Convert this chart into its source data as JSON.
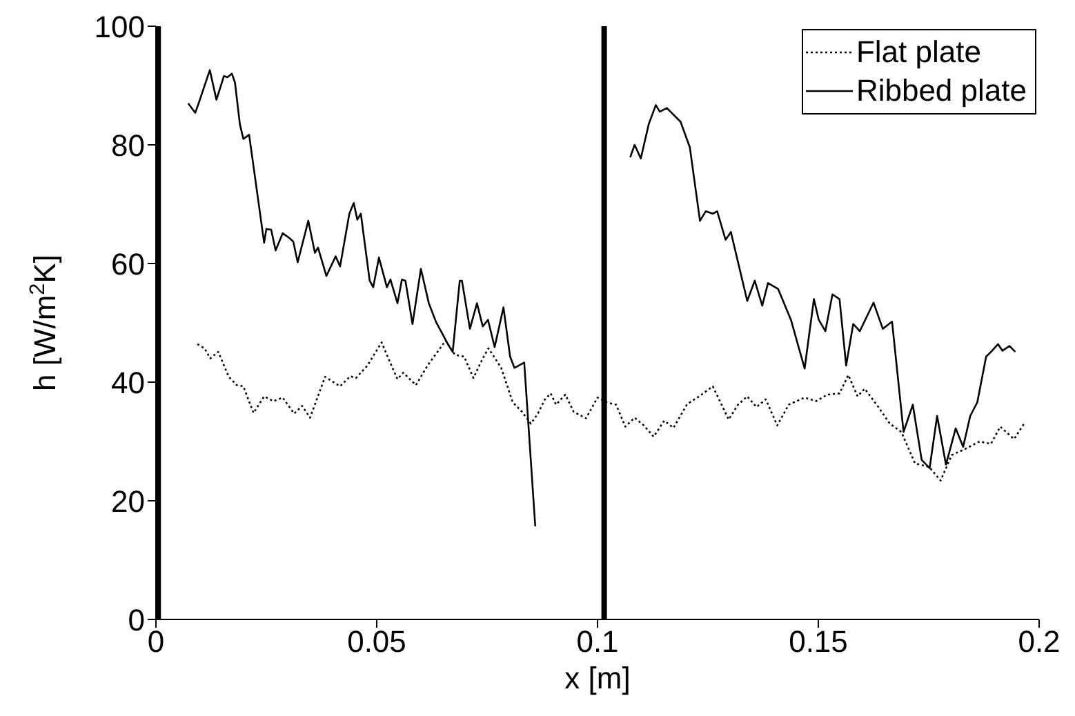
{
  "chart_data": {
    "type": "line",
    "xlabel": "x [m]",
    "ylabel": "h [W/m$^{2}$K]",
    "xlim": [
      0,
      0.2
    ],
    "ylim": [
      0,
      100
    ],
    "xticks": [
      0,
      0.05,
      0.1,
      0.15,
      0.2
    ],
    "yticks": [
      0,
      20,
      40,
      60,
      80,
      100
    ],
    "grid": false,
    "legend": "top right",
    "marker": "none",
    "ref_lines": [
      {
        "axis": "x",
        "value": 0.0005,
        "color": "#000000"
      },
      {
        "axis": "x",
        "value": 0.1015,
        "color": "#000000"
      }
    ],
    "series": [
      {
        "name": "Flat plate",
        "color": "#000000",
        "line_style": "dotted",
        "x": [
          0.0094,
          0.011,
          0.0123,
          0.0141,
          0.0165,
          0.0183,
          0.0198,
          0.0221,
          0.0245,
          0.0266,
          0.0287,
          0.0313,
          0.0331,
          0.0349,
          0.0383,
          0.0417,
          0.044,
          0.0453,
          0.0479,
          0.0511,
          0.0531,
          0.0547,
          0.056,
          0.0589,
          0.0615,
          0.0656,
          0.0677,
          0.0698,
          0.0719,
          0.074,
          0.0753,
          0.0782,
          0.0808,
          0.0829,
          0.0849,
          0.0865,
          0.088,
          0.0894,
          0.0906,
          0.0927,
          0.0946,
          0.0974,
          0.1,
          0.1021,
          0.1042,
          0.1063,
          0.1084,
          0.1105,
          0.1127,
          0.1151,
          0.1172,
          0.1203,
          0.1232,
          0.1261,
          0.1297,
          0.1318,
          0.1339,
          0.136,
          0.1381,
          0.1407,
          0.1433,
          0.1469,
          0.1495,
          0.1521,
          0.1548,
          0.1568,
          0.1589,
          0.1605,
          0.1636,
          0.1662,
          0.1688,
          0.1719,
          0.1751,
          0.1777,
          0.1802,
          0.1834,
          0.1865,
          0.1891,
          0.1912,
          0.1943,
          0.1967
        ],
        "values": [
          46.4,
          45.7,
          44.0,
          45.1,
          40.9,
          39.5,
          39.3,
          34.8,
          37.6,
          36.8,
          37.4,
          34.7,
          36.0,
          34.0,
          40.9,
          39.3,
          41.0,
          40.7,
          42.8,
          46.7,
          43.2,
          40.5,
          41.6,
          39.5,
          42.8,
          47.0,
          44.6,
          44.3,
          40.7,
          44.0,
          45.7,
          42.4,
          36.6,
          35.0,
          33.0,
          34.7,
          37.0,
          38.1,
          36.2,
          37.9,
          35.0,
          33.9,
          37.4,
          36.6,
          36.2,
          32.5,
          34.0,
          32.7,
          30.8,
          33.5,
          32.3,
          36.3,
          37.7,
          39.3,
          33.7,
          36.2,
          37.6,
          35.8,
          37.1,
          32.7,
          36.2,
          37.4,
          36.8,
          37.9,
          38.1,
          41.2,
          37.6,
          38.9,
          35.8,
          33.0,
          31.6,
          26.3,
          25.7,
          23.4,
          27.7,
          28.8,
          30.0,
          29.6,
          32.5,
          30.4,
          33.1
        ]
      },
      {
        "name": "Ribbed plate",
        "color": "#000000",
        "line_style": "solid",
        "x": [
          0.0073,
          0.0089,
          0.0099,
          0.0122,
          0.0137,
          0.0154,
          0.0162,
          0.0172,
          0.0179,
          0.019,
          0.0198,
          0.0211,
          0.0245,
          0.025,
          0.0261,
          0.0271,
          0.0287,
          0.0302,
          0.0311,
          0.0321,
          0.0345,
          0.036,
          0.0367,
          0.0386,
          0.0407,
          0.0417,
          0.0438,
          0.0448,
          0.0456,
          0.0464,
          0.0484,
          0.0492,
          0.0505,
          0.0523,
          0.0531,
          0.0547,
          0.0557,
          0.0565,
          0.0581,
          0.06,
          0.0618,
          0.0634,
          0.0662,
          0.0672,
          0.0688,
          0.0693,
          0.0711,
          0.0727,
          0.074,
          0.0752,
          0.0767,
          0.0787,
          0.0802,
          0.0812,
          0.0834,
          0.0859,
          0.095,
          0.1074,
          0.1084,
          0.1098,
          0.1116,
          0.1132,
          0.1141,
          0.1157,
          0.1188,
          0.1209,
          0.1232,
          0.1245,
          0.1261,
          0.1271,
          0.129,
          0.1302,
          0.1339,
          0.1356,
          0.1373,
          0.1386,
          0.1409,
          0.1438,
          0.1469,
          0.149,
          0.1501,
          0.1516,
          0.1532,
          0.1548,
          0.1563,
          0.1579,
          0.1594,
          0.1625,
          0.1646,
          0.1667,
          0.1693,
          0.1714,
          0.1734,
          0.1752,
          0.1769,
          0.1789,
          0.1811,
          0.1828,
          0.1844,
          0.186,
          0.188,
          0.1891,
          0.1907,
          0.1917,
          0.1933,
          0.1946
        ],
        "values": [
          87.0,
          85.4,
          87.5,
          92.6,
          87.6,
          91.6,
          91.4,
          92.0,
          90.5,
          83.5,
          81.0,
          81.7,
          63.5,
          65.8,
          65.7,
          62.2,
          65.1,
          64.3,
          63.7,
          60.2,
          67.2,
          61.8,
          62.7,
          57.9,
          61.2,
          59.5,
          68.4,
          70.2,
          67.4,
          68.4,
          57.1,
          56.0,
          61.0,
          56.0,
          57.3,
          53.3,
          57.3,
          57.1,
          49.8,
          59.1,
          53.3,
          50.2,
          46.3,
          45.1,
          57.1,
          57.1,
          49.0,
          53.3,
          49.4,
          50.5,
          45.9,
          52.6,
          44.3,
          42.4,
          43.3,
          15.7,
          null,
          77.9,
          80.0,
          77.7,
          83.5,
          86.7,
          85.6,
          86.2,
          83.9,
          79.6,
          67.2,
          68.8,
          68.4,
          68.8,
          64.0,
          65.3,
          53.7,
          57.1,
          52.9,
          56.7,
          55.7,
          50.5,
          42.3,
          54.0,
          50.5,
          48.6,
          54.8,
          54.0,
          42.8,
          49.8,
          48.6,
          53.4,
          49.0,
          50.2,
          31.6,
          36.2,
          26.9,
          25.5,
          34.3,
          26.1,
          32.2,
          29.1,
          34.3,
          36.6,
          44.3,
          45.1,
          46.4,
          45.3,
          46.1,
          45.1
        ]
      }
    ]
  }
}
